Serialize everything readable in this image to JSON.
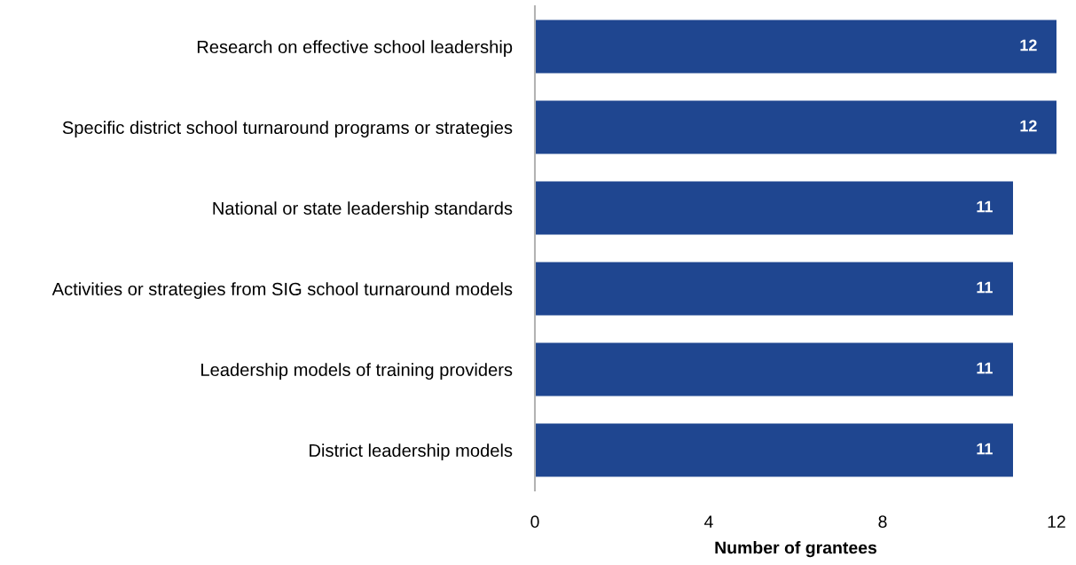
{
  "chart_data": {
    "type": "bar",
    "orientation": "horizontal",
    "categories": [
      "Research on effective school leadership",
      "Specific district school turnaround programs or strategies",
      "National or state leadership standards",
      "Activities or strategies from SIG school turnaround models",
      "Leadership models of training providers",
      "District leadership models"
    ],
    "values": [
      12,
      12,
      11,
      11,
      11,
      11
    ],
    "color": "#1f4690",
    "xlabel": "Number of grantees",
    "xlim": [
      0,
      12
    ],
    "xticks": [
      0,
      4,
      8,
      12
    ],
    "grid": false,
    "data_labels": true
  }
}
